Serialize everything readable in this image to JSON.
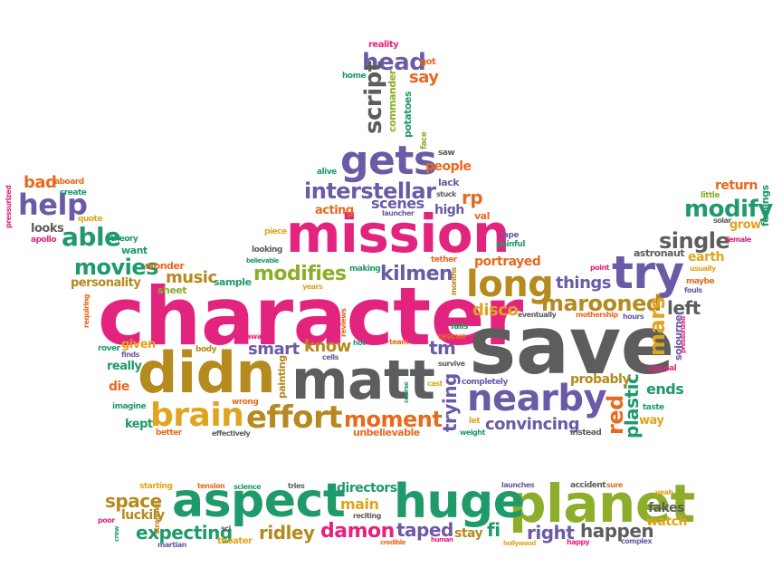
{
  "colors": {
    "pink": "#e3247e",
    "purple": "#6b5aa6",
    "green": "#1f9a6a",
    "olive": "#8cae2a",
    "orange": "#e86a1f",
    "gold": "#c98a1a",
    "gray": "#5d5d5d",
    "red": "#d8334a"
  },
  "words": [
    {
      "id": "character",
      "text": "character",
      "color": "#e3247e"
    },
    {
      "id": "save",
      "text": "save",
      "color": "#5d5d5d"
    },
    {
      "id": "mission",
      "text": "mission",
      "color": "#e3247e"
    },
    {
      "id": "matt",
      "text": "matt",
      "color": "#5d5d5d"
    },
    {
      "id": "didn",
      "text": "didn",
      "color": "#b58a1e"
    },
    {
      "id": "planet",
      "text": "planet",
      "color": "#8cae2a"
    },
    {
      "id": "huge",
      "text": "huge",
      "color": "#1f9a6a"
    },
    {
      "id": "aspect",
      "text": "aspect",
      "color": "#1f9a6a"
    },
    {
      "id": "gets",
      "text": "gets",
      "color": "#6b5aa6"
    },
    {
      "id": "try",
      "text": "try",
      "color": "#6b5aa6"
    },
    {
      "id": "long",
      "text": "long",
      "color": "#b58a1e"
    },
    {
      "id": "nearby",
      "text": "nearby",
      "color": "#6b5aa6"
    },
    {
      "id": "brain",
      "text": "brain",
      "color": "#e0a41e"
    },
    {
      "id": "effort",
      "text": "effort",
      "color": "#b58a1e"
    },
    {
      "id": "help",
      "text": "help",
      "color": "#6b5aa6"
    },
    {
      "id": "able",
      "text": "able",
      "color": "#1f9a6a"
    },
    {
      "id": "interstellar",
      "text": "interstellar",
      "color": "#6b5aa6"
    },
    {
      "id": "head",
      "text": "head",
      "color": "#6b5aa6"
    },
    {
      "id": "script",
      "text": "script",
      "color": "#5d5d5d"
    },
    {
      "id": "modify",
      "text": "modify",
      "color": "#1f9a6a"
    },
    {
      "id": "single",
      "text": "single",
      "color": "#5d5d5d"
    },
    {
      "id": "marooned",
      "text": "marooned",
      "color": "#b58a1e"
    },
    {
      "id": "movies",
      "text": "movies",
      "color": "#1f9a6a"
    },
    {
      "id": "modifies",
      "text": "modifies",
      "color": "#8cae2a"
    },
    {
      "id": "kilmen",
      "text": "kilmen",
      "color": "#6b5aa6"
    },
    {
      "id": "moment",
      "text": "moment",
      "color": "#e86a1f"
    },
    {
      "id": "mars",
      "text": "mars",
      "color": "#e0a41e"
    },
    {
      "id": "red",
      "text": "red",
      "color": "#e86a1f"
    },
    {
      "id": "plastic",
      "text": "plastic",
      "color": "#1f9a6a"
    },
    {
      "id": "left",
      "text": "left",
      "color": "#5d5d5d"
    },
    {
      "id": "convincing",
      "text": "convincing",
      "color": "#6b5aa6"
    },
    {
      "id": "trying",
      "text": "trying",
      "color": "#6b5aa6"
    },
    {
      "id": "tm",
      "text": "tm",
      "color": "#6b5aa6"
    },
    {
      "id": "disco",
      "text": "disco",
      "color": "#e0a41e"
    },
    {
      "id": "know",
      "text": "know",
      "color": "#b58a1e"
    },
    {
      "id": "smart",
      "text": "smart",
      "color": "#6b5aa6"
    },
    {
      "id": "music",
      "text": "music",
      "color": "#b58a1e"
    },
    {
      "id": "scenes",
      "text": "scenes",
      "color": "#6b5aa6"
    },
    {
      "id": "portrayed",
      "text": "portrayed",
      "color": "#e86a1f"
    },
    {
      "id": "things",
      "text": "things",
      "color": "#6b5aa6"
    },
    {
      "id": "space",
      "text": "space",
      "color": "#b58a1e"
    },
    {
      "id": "expecting",
      "text": "expecting",
      "color": "#1f9a6a"
    },
    {
      "id": "damon",
      "text": "damon",
      "color": "#e3247e"
    },
    {
      "id": "taped",
      "text": "taped",
      "color": "#6b5aa6"
    },
    {
      "id": "ridley",
      "text": "ridley",
      "color": "#b58a1e"
    },
    {
      "id": "happen",
      "text": "happen",
      "color": "#5d5d5d"
    },
    {
      "id": "right",
      "text": "right",
      "color": "#6b5aa6"
    },
    {
      "id": "main",
      "text": "main",
      "color": "#e0a41e"
    },
    {
      "id": "directors",
      "text": "directors",
      "color": "#1f9a6a"
    },
    {
      "id": "fi",
      "text": "fi",
      "color": "#1f9a6a"
    },
    {
      "id": "stay",
      "text": "stay",
      "color": "#b58a1e"
    },
    {
      "id": "luckily",
      "text": "luckily",
      "color": "#b58a1e"
    },
    {
      "id": "fakes",
      "text": "fakes",
      "color": "#5d5d5d"
    },
    {
      "id": "watch",
      "text": "watch",
      "color": "#e0a41e"
    },
    {
      "id": "bad",
      "text": "bad",
      "color": "#e86a1f"
    },
    {
      "id": "say",
      "text": "say",
      "color": "#e86a1f"
    },
    {
      "id": "ends",
      "text": "ends",
      "color": "#1f9a6a"
    },
    {
      "id": "probably",
      "text": "probably",
      "color": "#b58a1e"
    },
    {
      "id": "die",
      "text": "die",
      "color": "#e86a1f"
    },
    {
      "id": "given",
      "text": "given",
      "color": "#e0a41e"
    },
    {
      "id": "really",
      "text": "really",
      "color": "#1f9a6a"
    },
    {
      "id": "acting",
      "text": "acting",
      "color": "#e86a1f"
    },
    {
      "id": "high",
      "text": "high",
      "color": "#6b5aa6"
    },
    {
      "id": "rp",
      "text": "rp",
      "color": "#e86a1f"
    },
    {
      "id": "people",
      "text": "people",
      "color": "#e86a1f"
    },
    {
      "id": "kept",
      "text": "kept",
      "color": "#1f9a6a"
    },
    {
      "id": "wonder",
      "text": "wonder",
      "color": "#e86a1f"
    },
    {
      "id": "personality",
      "text": "personality",
      "color": "#b58a1e"
    },
    {
      "id": "looks",
      "text": "looks",
      "color": "#5d5d5d"
    },
    {
      "id": "return",
      "text": "return",
      "color": "#e86a1f"
    },
    {
      "id": "earth",
      "text": "earth",
      "color": "#e0a41e"
    },
    {
      "id": "commander",
      "text": "commander",
      "color": "#8cae2a"
    },
    {
      "id": "potatoes",
      "text": "potatoes",
      "color": "#1f9a6a"
    },
    {
      "id": "way",
      "text": "way",
      "color": "#e0a41e"
    },
    {
      "id": "painting",
      "text": "painting",
      "color": "#b58a1e"
    },
    {
      "id": "sojourner",
      "text": "sojourner",
      "color": "#6b5aa6"
    },
    {
      "id": "astronaut",
      "text": "astronaut",
      "color": "#5d5d5d"
    },
    {
      "id": "grow",
      "text": "grow",
      "color": "#e0a41e"
    },
    {
      "id": "feelings",
      "text": "feelings",
      "color": "#1f9a6a"
    },
    {
      "id": "val",
      "text": "val",
      "color": "#e86a1f"
    },
    {
      "id": "lack",
      "text": "lack",
      "color": "#6b5aa6"
    },
    {
      "id": "sample",
      "text": "sample",
      "color": "#1f9a6a"
    },
    {
      "id": "sheet",
      "text": "sheet",
      "color": "#8cae2a"
    },
    {
      "id": "want",
      "text": "want",
      "color": "#1f9a6a"
    },
    {
      "id": "reality",
      "text": "reality",
      "color": "#e3247e"
    },
    {
      "id": "got",
      "text": "got",
      "color": "#e86a1f"
    },
    {
      "id": "home",
      "text": "home",
      "color": "#1f9a6a"
    },
    {
      "id": "face",
      "text": "face",
      "color": "#8cae2a"
    },
    {
      "id": "saw",
      "text": "saw",
      "color": "#5d5d5d"
    },
    {
      "id": "alive",
      "text": "alive",
      "color": "#1f9a6a"
    },
    {
      "id": "stuck",
      "text": "stuck",
      "color": "#5d5d5d"
    },
    {
      "id": "launcher",
      "text": "launcher",
      "color": "#6b5aa6"
    },
    {
      "id": "aboard",
      "text": "aboard",
      "color": "#e86a1f"
    },
    {
      "id": "create",
      "text": "create",
      "color": "#1f9a6a"
    },
    {
      "id": "quote",
      "text": "quote",
      "color": "#e0a41e"
    },
    {
      "id": "theory",
      "text": "theory",
      "color": "#1f9a6a"
    },
    {
      "id": "apollo",
      "text": "apollo",
      "color": "#e3247e"
    },
    {
      "id": "pressurized",
      "text": "pressurized",
      "color": "#e3247e"
    },
    {
      "id": "piece",
      "text": "piece",
      "color": "#e0a41e"
    },
    {
      "id": "looking",
      "text": "looking",
      "color": "#5d5d5d"
    },
    {
      "id": "tape",
      "text": "tape",
      "color": "#6b5aa6"
    },
    {
      "id": "painful",
      "text": "painful",
      "color": "#1f9a6a"
    },
    {
      "id": "tether",
      "text": "tether",
      "color": "#e86a1f"
    },
    {
      "id": "months",
      "text": "months",
      "color": "#b58a1e"
    },
    {
      "id": "making",
      "text": "making",
      "color": "#1f9a6a"
    },
    {
      "id": "years",
      "text": "years",
      "color": "#e0a41e"
    },
    {
      "id": "fails",
      "text": "fails",
      "color": "#1f9a6a"
    },
    {
      "id": "rescue",
      "text": "rescue",
      "color": "#e86a1f"
    },
    {
      "id": "point",
      "text": "point",
      "color": "#e3247e"
    },
    {
      "id": "usually",
      "text": "usually",
      "color": "#e0a41e"
    },
    {
      "id": "maybe",
      "text": "maybe",
      "color": "#e86a1f"
    },
    {
      "id": "fouls",
      "text": "fouls",
      "color": "#6b5aa6"
    },
    {
      "id": "little",
      "text": "little",
      "color": "#8cae2a"
    },
    {
      "id": "solar",
      "text": "solar",
      "color": "#5d5d5d"
    },
    {
      "id": "female",
      "text": "female",
      "color": "#e3247e"
    },
    {
      "id": "eventually",
      "text": "eventually",
      "color": "#5d5d5d"
    },
    {
      "id": "mothership",
      "text": "mothership",
      "color": "#e86a1f"
    },
    {
      "id": "hours",
      "text": "hours",
      "color": "#6b5aa6"
    },
    {
      "id": "pressurized2",
      "text": "pressurized",
      "color": "#e3247e"
    },
    {
      "id": "appeal",
      "text": "appeal",
      "color": "#e3247e"
    },
    {
      "id": "taste",
      "text": "taste",
      "color": "#1f9a6a"
    },
    {
      "id": "instead",
      "text": "instead",
      "color": "#5d5d5d"
    },
    {
      "id": "requiring",
      "text": "requiring",
      "color": "#e86a1f"
    },
    {
      "id": "rover",
      "text": "rover",
      "color": "#1f9a6a"
    },
    {
      "id": "finds",
      "text": "finds",
      "color": "#6b5aa6"
    },
    {
      "id": "body",
      "text": "body",
      "color": "#b58a1e"
    },
    {
      "id": "away",
      "text": "away",
      "color": "#e3247e"
    },
    {
      "id": "reviews",
      "text": "reviews",
      "color": "#e86a1f"
    },
    {
      "id": "hot",
      "text": "hot",
      "color": "#1f9a6a"
    },
    {
      "id": "team",
      "text": "team",
      "color": "#e86a1f"
    },
    {
      "id": "cells",
      "text": "cells",
      "color": "#6b5aa6"
    },
    {
      "id": "survive",
      "text": "survive",
      "color": "#5d5d5d"
    },
    {
      "id": "completely",
      "text": "completely",
      "color": "#6b5aa6"
    },
    {
      "id": "cast",
      "text": "cast",
      "color": "#e0a41e"
    },
    {
      "id": "course",
      "text": "course",
      "color": "#1f9a6a"
    },
    {
      "id": "imagine",
      "text": "imagine",
      "color": "#1f9a6a"
    },
    {
      "id": "wrong",
      "text": "wrong",
      "color": "#e86a1f"
    },
    {
      "id": "better",
      "text": "better",
      "color": "#e86a1f"
    },
    {
      "id": "effectively",
      "text": "effectively",
      "color": "#5d5d5d"
    },
    {
      "id": "unbelievable",
      "text": "unbelievable",
      "color": "#e86a1f"
    },
    {
      "id": "let",
      "text": "let",
      "color": "#e0a41e"
    },
    {
      "id": "weight",
      "text": "weight",
      "color": "#1f9a6a"
    },
    {
      "id": "believable",
      "text": "believable",
      "color": "#1f9a6a"
    },
    {
      "id": "starting",
      "text": "starting",
      "color": "#e0a41e"
    },
    {
      "id": "tension",
      "text": "tension",
      "color": "#e86a1f"
    },
    {
      "id": "science",
      "text": "science",
      "color": "#1f9a6a"
    },
    {
      "id": "tries",
      "text": "tries",
      "color": "#5d5d5d"
    },
    {
      "id": "launches",
      "text": "launches",
      "color": "#6b5aa6"
    },
    {
      "id": "accident",
      "text": "accident",
      "color": "#5d5d5d"
    },
    {
      "id": "sure",
      "text": "sure",
      "color": "#e86a1f"
    },
    {
      "id": "yeah",
      "text": "yeah",
      "color": "#e0a41e"
    },
    {
      "id": "poor",
      "text": "poor",
      "color": "#e3247e"
    },
    {
      "id": "crew",
      "text": "crew",
      "color": "#1f9a6a"
    },
    {
      "id": "stranded",
      "text": "stranded",
      "color": "#b58a1e"
    },
    {
      "id": "martian",
      "text": "martian",
      "color": "#6b5aa6"
    },
    {
      "id": "sci",
      "text": "sci",
      "color": "#5d5d5d"
    },
    {
      "id": "theater",
      "text": "theater",
      "color": "#e0a41e"
    },
    {
      "id": "reciting",
      "text": "reciting",
      "color": "#5d5d5d"
    },
    {
      "id": "credible",
      "text": "credible",
      "color": "#e86a1f"
    },
    {
      "id": "human",
      "text": "human",
      "color": "#e3247e"
    },
    {
      "id": "hollywood",
      "text": "hollywood",
      "color": "#e0a41e"
    },
    {
      "id": "happy",
      "text": "happy",
      "color": "#e3247e"
    },
    {
      "id": "complex",
      "text": "complex",
      "color": "#6b5aa6"
    }
  ]
}
